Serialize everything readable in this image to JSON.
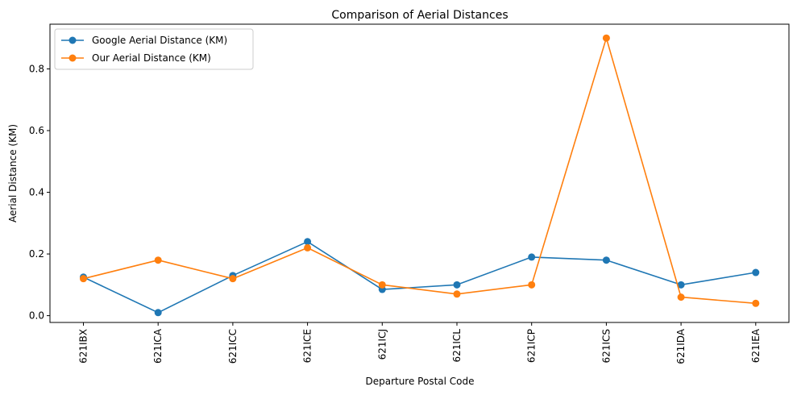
{
  "chart_data": {
    "type": "line",
    "title": "Comparison of Aerial Distances",
    "xlabel": "Departure Postal Code",
    "ylabel": "Aerial Distance (KM)",
    "categories": [
      "621IBX",
      "621ICA",
      "621ICC",
      "621ICE",
      "621ICJ",
      "621ICL",
      "621ICP",
      "621ICS",
      "621IDA",
      "621IEA"
    ],
    "yticks": [
      "0.0",
      "0.2",
      "0.4",
      "0.6",
      "0.8"
    ],
    "ylim": [
      -0.022,
      0.945
    ],
    "grid": false,
    "legend_position": "top-left",
    "series": [
      {
        "name": "Google Aerial Distance (KM)",
        "color": "#1f77b4",
        "marker": "circle",
        "values": [
          0.125,
          0.01,
          0.13,
          0.24,
          0.085,
          0.1,
          0.19,
          0.18,
          0.1,
          0.14
        ]
      },
      {
        "name": "Our Aerial Distance (KM)",
        "color": "#ff7f0e",
        "marker": "circle",
        "values": [
          0.12,
          0.18,
          0.12,
          0.22,
          0.1,
          0.07,
          0.1,
          0.9,
          0.06,
          0.04
        ]
      }
    ]
  }
}
